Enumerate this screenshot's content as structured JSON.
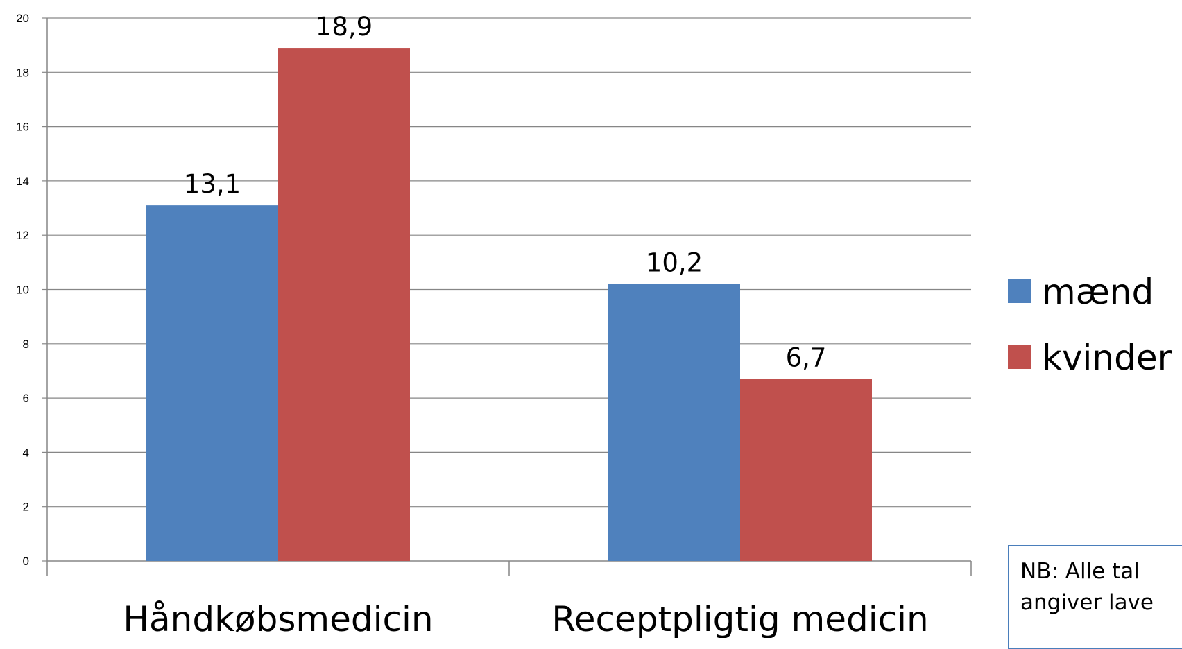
{
  "chart_data": {
    "type": "bar",
    "categories": [
      "Håndkøbsmedicin",
      "Receptpligtig medicin"
    ],
    "series": [
      {
        "name": "mænd",
        "values": [
          13.1,
          10.2
        ],
        "labels": [
          "13,1",
          "10,2"
        ],
        "color": "#4f81bd"
      },
      {
        "name": "kvinder",
        "values": [
          18.9,
          6.7
        ],
        "labels": [
          "18,9",
          "6,7"
        ],
        "color": "#c0504d"
      }
    ],
    "ylim": [
      0,
      20
    ],
    "yticks": [
      0,
      2,
      4,
      6,
      8,
      10,
      12,
      14,
      16,
      18,
      20
    ],
    "grid": true,
    "legend_position": "right",
    "title": "",
    "xlabel": "",
    "ylabel": ""
  },
  "note": "NB: Alle tal\nangiver lave"
}
